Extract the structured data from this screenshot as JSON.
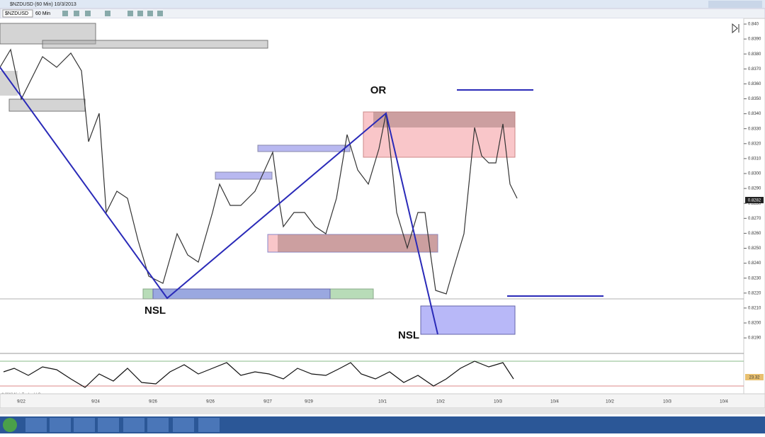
{
  "window": {
    "title": "$NZDUSD (60 Min)  10/3/2013"
  },
  "toolbar": {
    "instrument": "$NZDUSD",
    "interval": "60 Min"
  },
  "annotations": {
    "top": "OR",
    "left_low": "NSL",
    "right_low": "NSL"
  },
  "price_axis": {
    "labels": [
      "0.840",
      "0.8390",
      "0.8380",
      "0.8370",
      "0.8360",
      "0.8350",
      "0.8340",
      "0.8330",
      "0.8320",
      "0.8310",
      "0.8300",
      "0.8290",
      "0.8280",
      "0.8270",
      "0.8260",
      "0.8250",
      "0.8240",
      "0.8230",
      "0.8220",
      "0.8210",
      "0.8200",
      "0.8190"
    ],
    "current": "0.8282",
    "indicator": "23.32"
  },
  "time_axis": {
    "labels": [
      "9/22",
      "9/24",
      "9/26",
      "9/26",
      "9/27",
      "9/29",
      "10/1",
      "10/2",
      "10/3",
      "10/4",
      "10/2",
      "10/3",
      "10/4"
    ]
  },
  "footer": {
    "copyright": "© 2013 NinjaTrader, LLC"
  }
}
